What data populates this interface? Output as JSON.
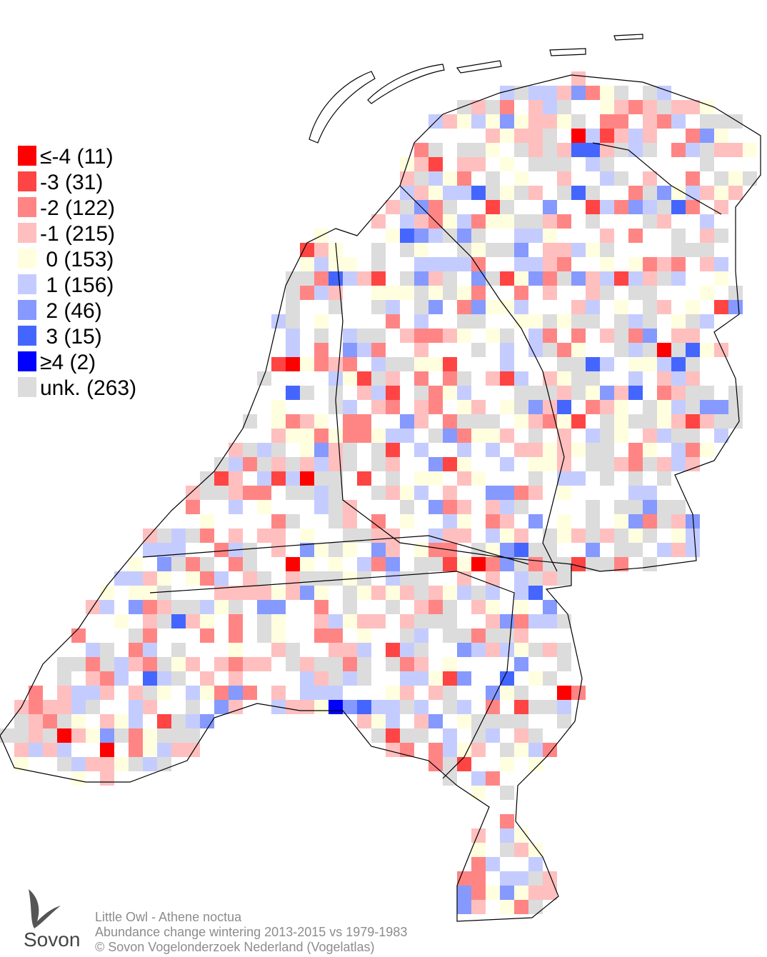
{
  "legend": {
    "entries": [
      {
        "label": "≤-4 (11)",
        "color": "#ff0000"
      },
      {
        "label": "-3 (31)",
        "color": "#ff4444"
      },
      {
        "label": "-2 (122)",
        "color": "#ff8585"
      },
      {
        "label": "-1 (215)",
        "color": "#ffbfbf"
      },
      {
        "label": " 0 (153)",
        "color": "#ffffe0"
      },
      {
        "label": " 1 (156)",
        "color": "#c4ccff"
      },
      {
        "label": " 2 (46)",
        "color": "#8599ff"
      },
      {
        "label": " 3 (15)",
        "color": "#4466ff"
      },
      {
        "label": "≥4 (2)",
        "color": "#0000ff"
      },
      {
        "label": "unk. (263)",
        "color": "#dcdcdc"
      }
    ]
  },
  "footer": {
    "lines": [
      "Little Owl - Athene noctua",
      "Abundance change wintering  2013-2015 vs 1979-1983",
      "© Sovon Vogelonderzoek Nederland (Vogelatlas)"
    ]
  },
  "logo": {
    "text": "Sovon"
  }
}
